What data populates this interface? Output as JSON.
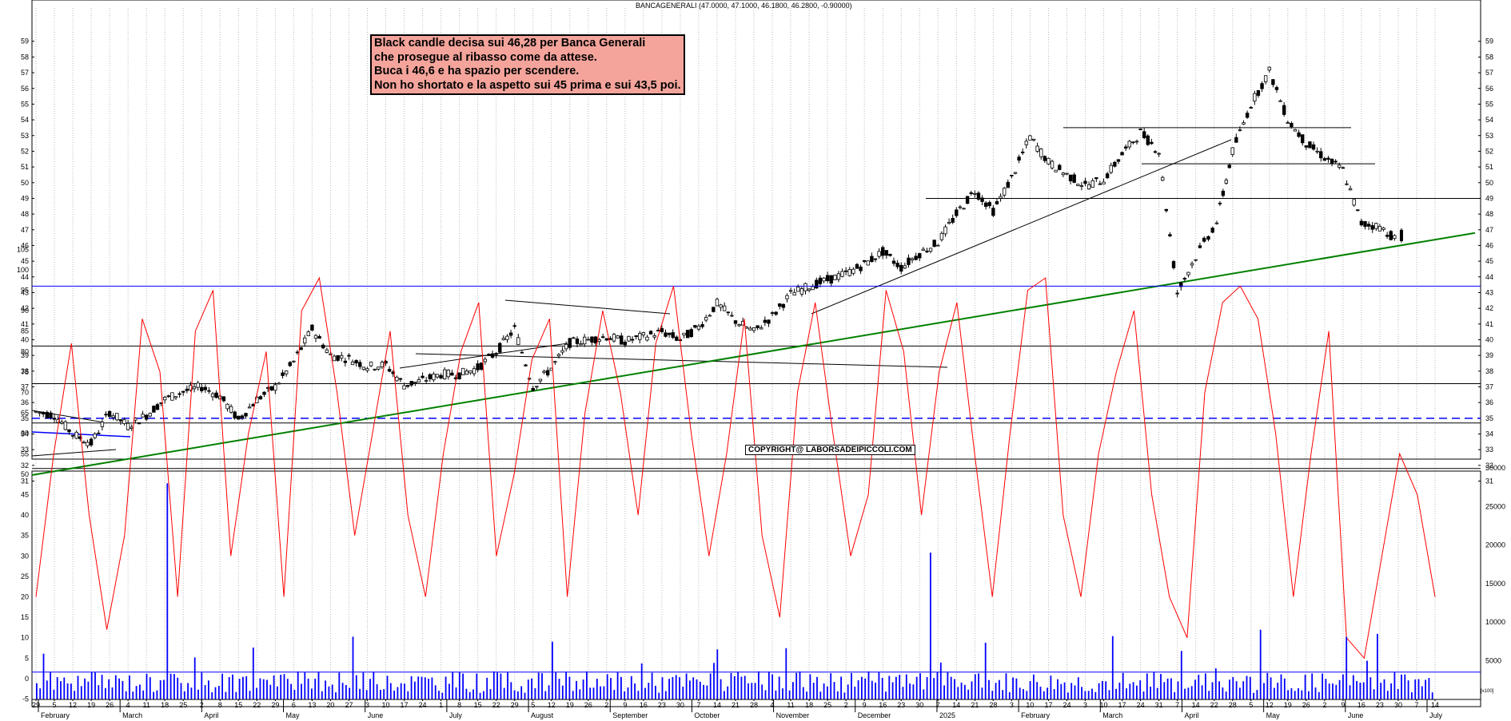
{
  "title": "BANCAGENERALI (47.0000, 47.1000, 46.1800, 46.2800, -0.90000)",
  "annotation": {
    "lines": [
      "Black candle decisa sui 46,28 per Banca Generali",
      "che prosegue al ribasso come da attese.",
      "Buca i 46,6 e ha spazio per scendere.",
      "Non ho shortato e la aspetto sui 45 prima e sui 43,5 poi."
    ]
  },
  "copyright": "COPYRIGHT@ LABORSADEIPICCOLI.COM",
  "volume_unit_label": "[x100]",
  "colors": {
    "candle_up": "#ffffff",
    "candle_down": "#000000",
    "trendline_green": "#008000",
    "blue": "#0000ff",
    "red": "#ff0000",
    "annotation_bg": "#f4a49b"
  },
  "chart_data": [
    {
      "type": "candlestick",
      "title": "BANCAGENERALI (47.0000, 47.1000, 46.1800, 46.2800, -0.90000)",
      "ylim": [
        30.5,
        60
      ],
      "y_ticks": [
        31,
        32,
        33,
        34,
        35,
        36,
        37,
        38,
        39,
        40,
        41,
        42,
        43,
        44,
        45,
        46,
        47,
        48,
        49,
        50,
        51,
        52,
        53,
        54,
        55,
        56,
        57,
        58,
        59
      ],
      "x_date_labels": [
        "29",
        "5",
        "12",
        "19",
        "26",
        "4",
        "11",
        "18",
        "25",
        "2",
        "8",
        "15",
        "22",
        "29",
        "6",
        "13",
        "20",
        "27",
        "3",
        "10",
        "17",
        "24",
        "1",
        "8",
        "15",
        "22",
        "29",
        "5",
        "12",
        "19",
        "26",
        "2",
        "9",
        "16",
        "23",
        "30",
        "7",
        "14",
        "21",
        "28",
        "4",
        "11",
        "18",
        "25",
        "2",
        "9",
        "16",
        "23",
        "30",
        "7",
        "14",
        "21",
        "28",
        "3",
        "10",
        "17",
        "24",
        "3",
        "10",
        "17",
        "24",
        "31",
        "7",
        "14",
        "22",
        "28",
        "5",
        "12",
        "19",
        "26",
        "2",
        "9",
        "16",
        "23",
        "30",
        "7",
        "14"
      ],
      "x_month_labels": [
        "February",
        "March",
        "April",
        "May",
        "June",
        "July",
        "August",
        "September",
        "October",
        "November",
        "December",
        "2025",
        "February",
        "March",
        "April",
        "May",
        "June",
        "July"
      ],
      "x_range": [
        "2024-01-29",
        "2025-07-14"
      ],
      "ohlc_last": {
        "open": 47.0,
        "high": 47.1,
        "low": 46.18,
        "close": 46.28,
        "change": -0.9
      },
      "price_path": [
        [
          "2024-01-29",
          35.4
        ],
        [
          "2024-02-05",
          35.2
        ],
        [
          "2024-02-12",
          34.0
        ],
        [
          "2024-02-19",
          33.4
        ],
        [
          "2024-02-26",
          35.4
        ],
        [
          "2024-03-04",
          34.5
        ],
        [
          "2024-03-11",
          35.2
        ],
        [
          "2024-03-18",
          36.2
        ],
        [
          "2024-03-25",
          36.7
        ],
        [
          "2024-04-01",
          37.0
        ],
        [
          "2024-04-08",
          36.4
        ],
        [
          "2024-04-15",
          34.9
        ],
        [
          "2024-04-22",
          36.2
        ],
        [
          "2024-04-29",
          37.0
        ],
        [
          "2024-05-06",
          38.6
        ],
        [
          "2024-05-13",
          40.7
        ],
        [
          "2024-05-20",
          39.0
        ],
        [
          "2024-05-27",
          38.8
        ],
        [
          "2024-06-03",
          38.3
        ],
        [
          "2024-06-10",
          38.4
        ],
        [
          "2024-06-17",
          37.1
        ],
        [
          "2024-06-24",
          37.4
        ],
        [
          "2024-07-01",
          37.8
        ],
        [
          "2024-07-08",
          37.8
        ],
        [
          "2024-07-15",
          38.2
        ],
        [
          "2024-07-22",
          39.2
        ],
        [
          "2024-07-29",
          40.7
        ],
        [
          "2024-08-05",
          37.0
        ],
        [
          "2024-08-12",
          38.2
        ],
        [
          "2024-08-19",
          39.8
        ],
        [
          "2024-08-26",
          40.0
        ],
        [
          "2024-09-02",
          40.2
        ],
        [
          "2024-09-09",
          39.9
        ],
        [
          "2024-09-16",
          40.2
        ],
        [
          "2024-09-23",
          40.5
        ],
        [
          "2024-09-30",
          40.0
        ],
        [
          "2024-10-07",
          40.8
        ],
        [
          "2024-10-14",
          42.3
        ],
        [
          "2024-10-21",
          41.2
        ],
        [
          "2024-10-28",
          40.5
        ],
        [
          "2024-11-04",
          41.5
        ],
        [
          "2024-11-11",
          42.9
        ],
        [
          "2024-11-18",
          43.4
        ],
        [
          "2024-11-25",
          43.8
        ],
        [
          "2024-12-02",
          44.2
        ],
        [
          "2024-12-09",
          44.8
        ],
        [
          "2024-12-16",
          45.6
        ],
        [
          "2024-12-23",
          44.6
        ],
        [
          "2024-12-30",
          45.5
        ],
        [
          "2025-01-06",
          46.2
        ],
        [
          "2025-01-13",
          48.0
        ],
        [
          "2025-01-20",
          49.5
        ],
        [
          "2025-01-27",
          48.2
        ],
        [
          "2025-02-03",
          50.3
        ],
        [
          "2025-02-10",
          52.9
        ],
        [
          "2025-02-17",
          51.3
        ],
        [
          "2025-02-24",
          50.5
        ],
        [
          "2025-03-03",
          49.8
        ],
        [
          "2025-03-10",
          50.2
        ],
        [
          "2025-03-17",
          51.8
        ],
        [
          "2025-03-24",
          53.2
        ],
        [
          "2025-03-31",
          52.0
        ],
        [
          "2025-04-07",
          43.0
        ],
        [
          "2025-04-14",
          45.3
        ],
        [
          "2025-04-22",
          47.5
        ],
        [
          "2025-04-28",
          52.0
        ],
        [
          "2025-05-05",
          55.0
        ],
        [
          "2025-05-12",
          57.1
        ],
        [
          "2025-05-19",
          54.0
        ],
        [
          "2025-05-26",
          52.5
        ],
        [
          "2025-06-02",
          51.6
        ],
        [
          "2025-06-09",
          50.8
        ],
        [
          "2025-06-16",
          47.4
        ],
        [
          "2025-06-23",
          47.2
        ],
        [
          "2025-06-30",
          46.28
        ]
      ],
      "horizontal_levels": [
        31.8,
        34.7,
        37.2,
        39.6,
        49.0,
        51.2,
        53.5
      ],
      "dashed_level": {
        "value": 35.0,
        "color": "blue"
      },
      "support_trendline": {
        "from": [
          "2024-01-29",
          32.4
        ],
        "to": [
          "2025-07-14",
          46.8
        ],
        "color": "green"
      }
    },
    {
      "type": "line",
      "series": [
        {
          "values": [
            20,
            55,
            82,
            40,
            12,
            35,
            88,
            75,
            20,
            85,
            95,
            30,
            60,
            80,
            20,
            90,
            98,
            70,
            35,
            60,
            85,
            40,
            20,
            55,
            80,
            92,
            30,
            50,
            78,
            88,
            20,
            65,
            90,
            70,
            40,
            82,
            96,
            60,
            30,
            55,
            88,
            35,
            15,
            70,
            92,
            60,
            30,
            45,
            95,
            80,
            40,
            75,
            92,
            55,
            20,
            60,
            95,
            98,
            40,
            20,
            55,
            75,
            90,
            45,
            20,
            10,
            70,
            92,
            96,
            88,
            60,
            20,
            55,
            85,
            10,
            5,
            30,
            55,
            45,
            20
          ]
        }
      ],
      "ylim": [
        -5,
        105
      ],
      "y_ticks": [
        -5,
        0,
        5,
        10,
        15,
        20,
        25,
        30,
        35,
        40,
        45,
        50,
        55,
        60,
        65,
        70,
        75,
        80,
        85,
        90,
        95,
        100,
        105
      ],
      "overbought_level": 96
    },
    {
      "type": "bar",
      "y_right_ticks": [
        5000,
        10000,
        15000,
        20000,
        25000,
        30000
      ],
      "volume_baseline": 3500
    }
  ]
}
